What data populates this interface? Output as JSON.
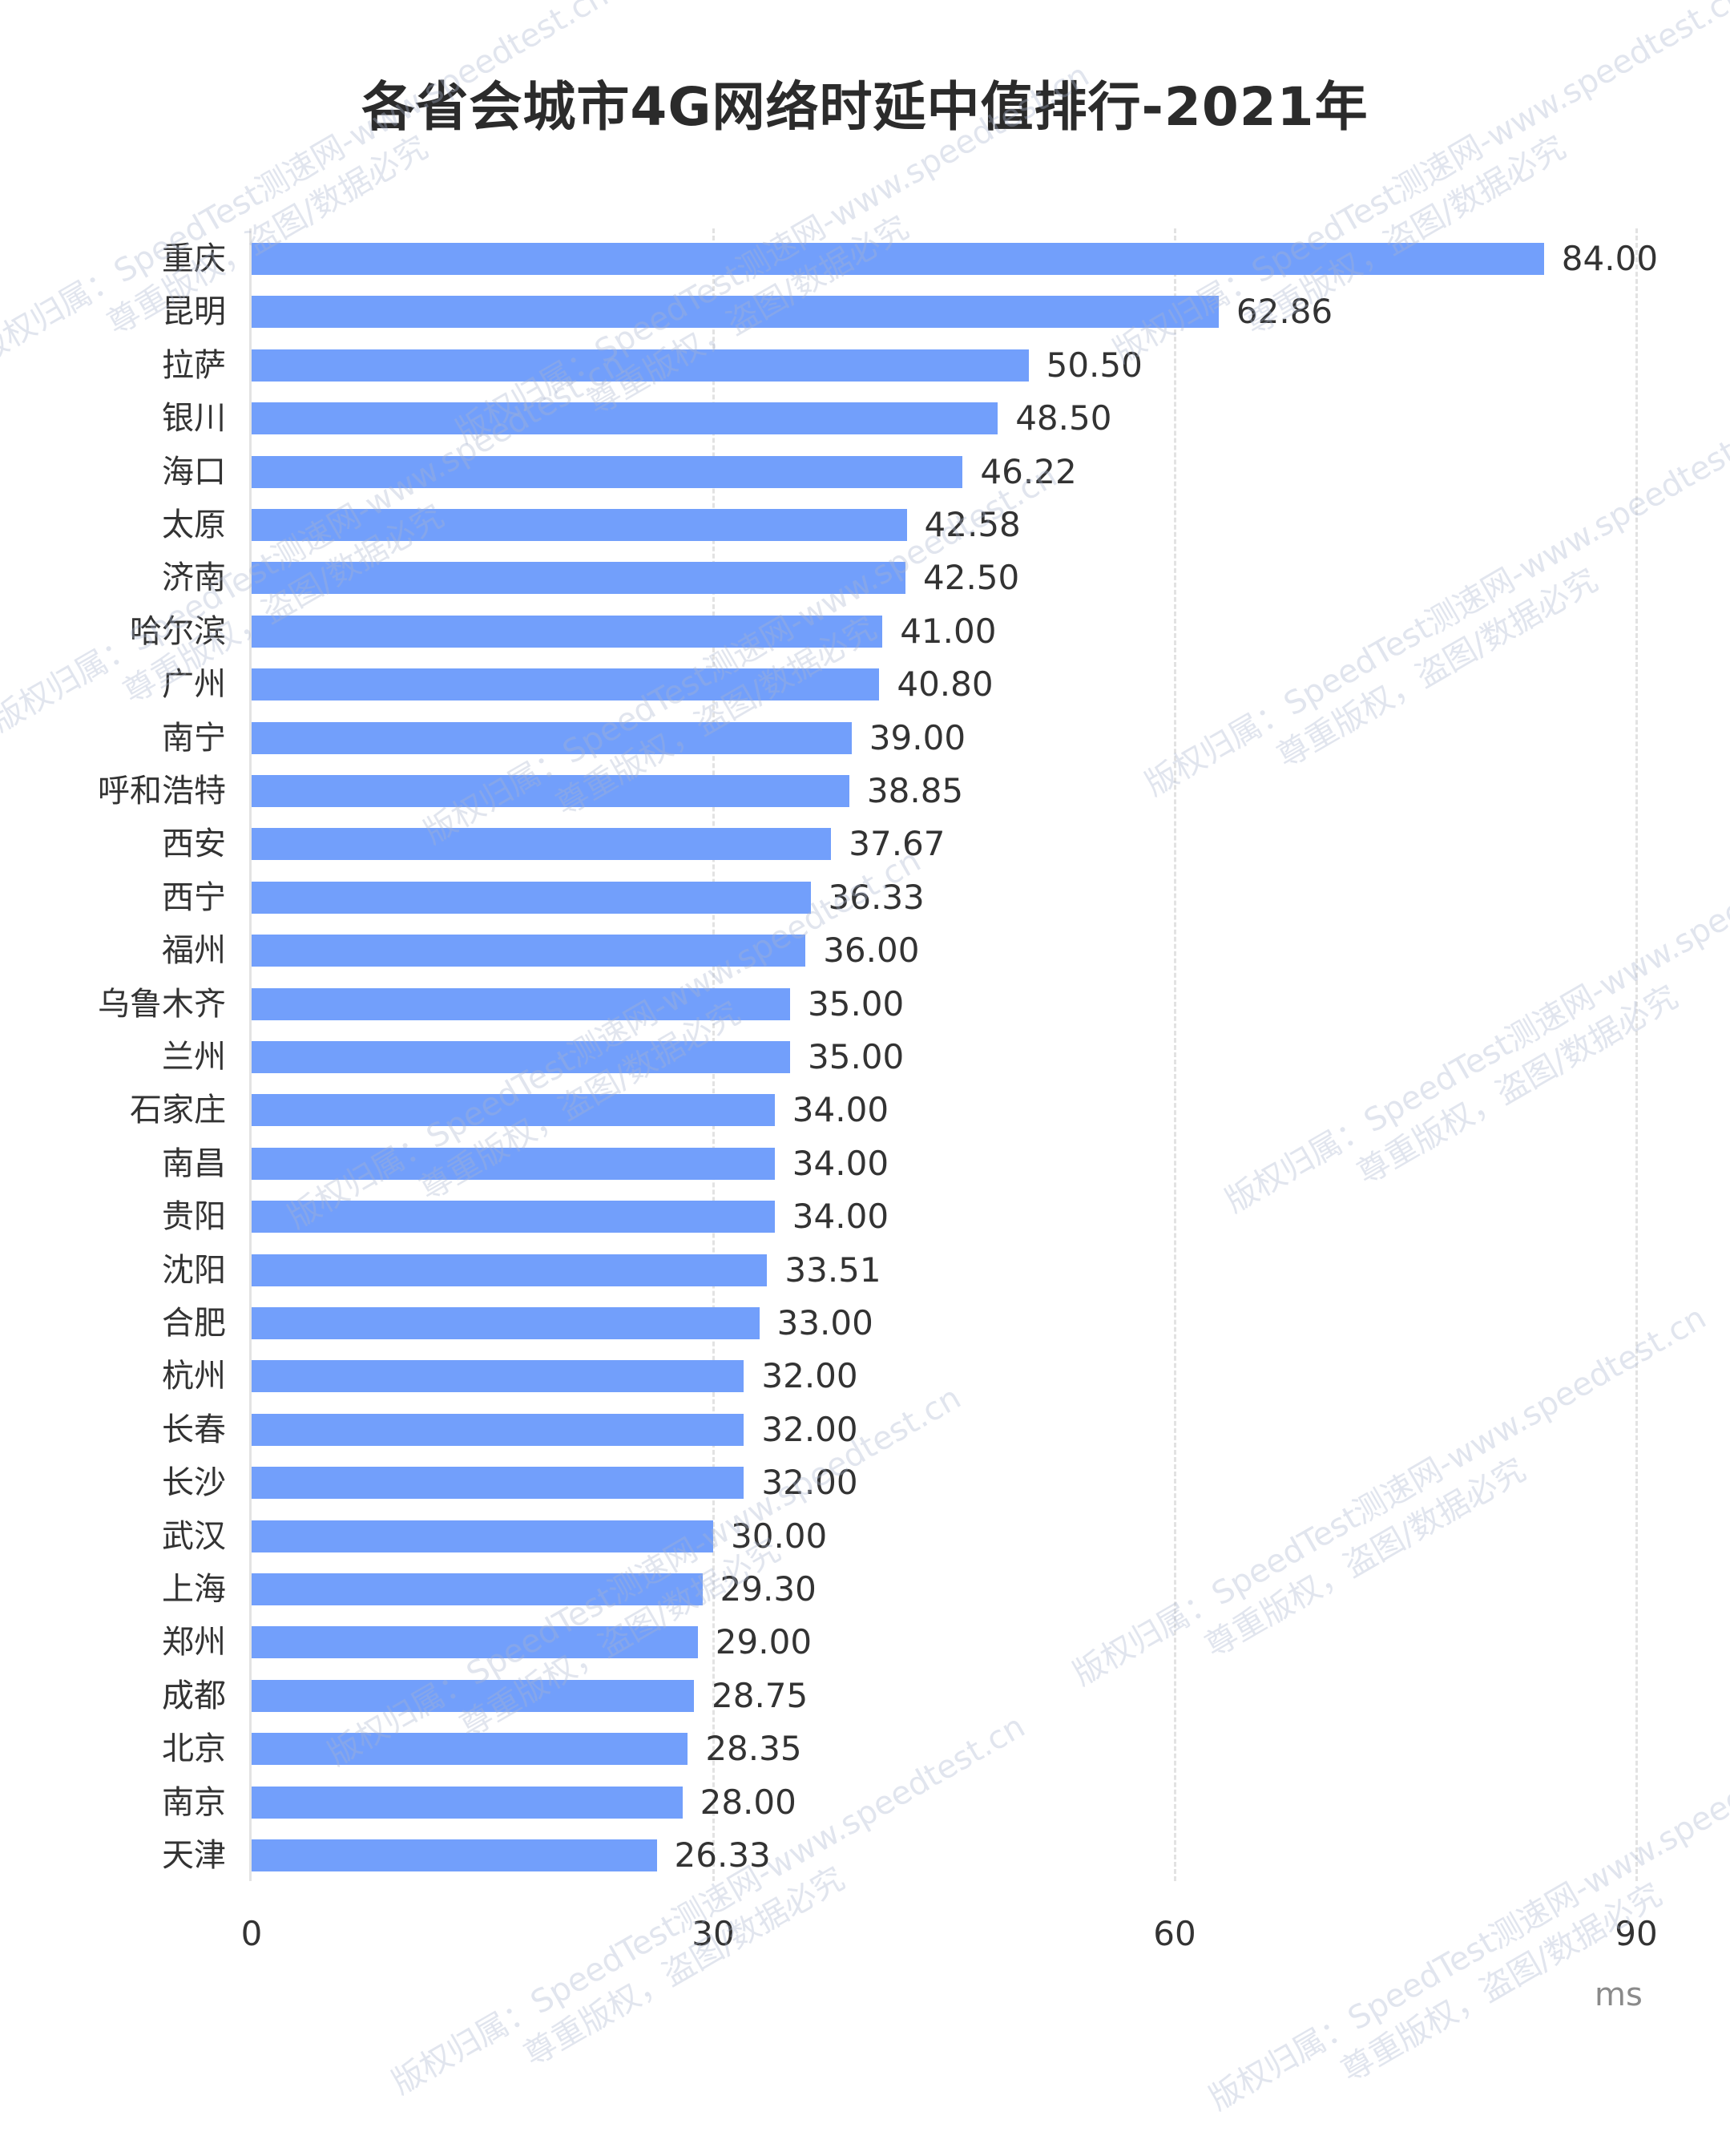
{
  "title": "各省会城市4G网络时延中值排行-2021年",
  "axis": {
    "ticks": [
      "0",
      "30",
      "60",
      "90"
    ],
    "unit": "ms"
  },
  "colors": {
    "bar": "#729ffb",
    "grid": "#e2e2e2",
    "text": "#333333"
  },
  "watermark": {
    "line1": "版权归属：SpeedTest测速网-www.speedtest.cn",
    "line2": "尊重版权，盗图/数据必究"
  },
  "chart_data": {
    "type": "bar",
    "orientation": "horizontal",
    "title": "各省会城市4G网络时延中值排行-2021年",
    "xlabel": "ms",
    "ylabel": "",
    "xlim": [
      0,
      90
    ],
    "xticks": [
      0,
      30,
      60,
      90
    ],
    "grid": "vertical dashed",
    "legend": "none",
    "categories": [
      "重庆",
      "昆明",
      "拉萨",
      "银川",
      "海口",
      "太原",
      "济南",
      "哈尔滨",
      "广州",
      "南宁",
      "呼和浩特",
      "西安",
      "西宁",
      "福州",
      "乌鲁木齐",
      "兰州",
      "石家庄",
      "南昌",
      "贵阳",
      "沈阳",
      "合肥",
      "杭州",
      "长春",
      "长沙",
      "武汉",
      "上海",
      "郑州",
      "成都",
      "北京",
      "南京",
      "天津"
    ],
    "values": [
      84.0,
      62.86,
      50.5,
      48.5,
      46.22,
      42.58,
      42.5,
      41.0,
      40.8,
      39.0,
      38.85,
      37.67,
      36.33,
      36.0,
      35.0,
      35.0,
      34.0,
      34.0,
      34.0,
      33.51,
      33.0,
      32.0,
      32.0,
      32.0,
      30.0,
      29.3,
      29.0,
      28.75,
      28.35,
      28.0,
      26.33
    ],
    "value_labels": [
      "84.00",
      "62.86",
      "50.50",
      "48.50",
      "46.22",
      "42.58",
      "42.50",
      "41.00",
      "40.80",
      "39.00",
      "38.85",
      "37.67",
      "36.33",
      "36.00",
      "35.00",
      "35.00",
      "34.00",
      "34.00",
      "34.00",
      "33.51",
      "33.00",
      "32.00",
      "32.00",
      "32.00",
      "30.00",
      "29.30",
      "29.00",
      "28.75",
      "28.35",
      "28.00",
      "26.33"
    ]
  }
}
